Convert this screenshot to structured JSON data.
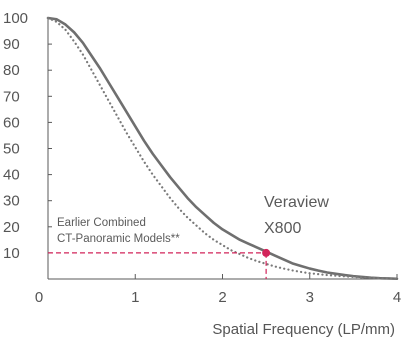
{
  "chart_data": {
    "type": "line",
    "title": "",
    "xlabel": "Spatial Frequency (LP/mm)",
    "ylabel": "",
    "xlim": [
      0,
      4
    ],
    "ylim": [
      0,
      100
    ],
    "x_ticks": [
      "0",
      "1",
      "2",
      "3",
      "4"
    ],
    "y_ticks": [
      "100",
      "90",
      "80",
      "70",
      "60",
      "50",
      "40",
      "30",
      "20",
      "10"
    ],
    "grid": false,
    "series": [
      {
        "name": "Veraview X800",
        "style": "solid",
        "color": "#6f6f6f",
        "x": [
          0,
          0.1,
          0.2,
          0.3,
          0.4,
          0.5,
          0.6,
          0.7,
          0.8,
          0.9,
          1.0,
          1.1,
          1.2,
          1.3,
          1.4,
          1.5,
          1.6,
          1.7,
          1.8,
          1.9,
          2.0,
          2.1,
          2.2,
          2.3,
          2.4,
          2.5,
          2.6,
          2.7,
          2.8,
          2.9,
          3.0,
          3.1,
          3.2,
          3.3,
          3.4,
          3.5,
          3.6,
          3.7,
          3.8,
          3.9,
          4.0
        ],
        "y": [
          100,
          99.5,
          97.5,
          94.5,
          90.5,
          85.5,
          80.5,
          75,
          69.5,
          64,
          58.5,
          53,
          48,
          43.5,
          39,
          35,
          31,
          27.5,
          24.5,
          21.5,
          19,
          17,
          15,
          13.5,
          12,
          10.5,
          9,
          7.5,
          6,
          5,
          4,
          3.2,
          2.5,
          2,
          1.5,
          1.1,
          0.8,
          0.5,
          0.3,
          0.2,
          0.1
        ]
      },
      {
        "name": "Earlier Combined CT-Panoramic Models**",
        "style": "dotted",
        "color": "#7a7a7a",
        "x": [
          0,
          0.1,
          0.2,
          0.3,
          0.4,
          0.5,
          0.6,
          0.7,
          0.8,
          0.9,
          1.0,
          1.1,
          1.2,
          1.3,
          1.4,
          1.5,
          1.6,
          1.7,
          1.8,
          1.9,
          2.0,
          2.1,
          2.2,
          2.3,
          2.4,
          2.5,
          2.6,
          2.7,
          2.8,
          2.9,
          3.0,
          3.2,
          3.4,
          3.6,
          3.8,
          4.0
        ],
        "y": [
          100,
          98.5,
          95.5,
          91,
          86,
          80,
          74,
          68,
          62,
          56,
          50.5,
          45,
          40,
          35.5,
          31,
          27,
          23.5,
          20.5,
          17.5,
          15,
          13,
          11,
          9.5,
          8,
          6.8,
          5.8,
          4.8,
          4,
          3.3,
          2.7,
          2.2,
          1.5,
          1,
          0.6,
          0.3,
          0.1
        ]
      }
    ],
    "marker": {
      "x": 2.5,
      "y": 10.5,
      "color": "#d2245a",
      "ref_y_label": "10"
    },
    "annotations": {
      "veraview_line1": "Veraview",
      "veraview_line2": "X800",
      "earlier_line1": "Earlier Combined",
      "earlier_line2": "CT-Panoramic Models**"
    },
    "colors": {
      "axis": "#5a5a5a",
      "tick_text": "#555555",
      "accent": "#d2245a"
    }
  }
}
